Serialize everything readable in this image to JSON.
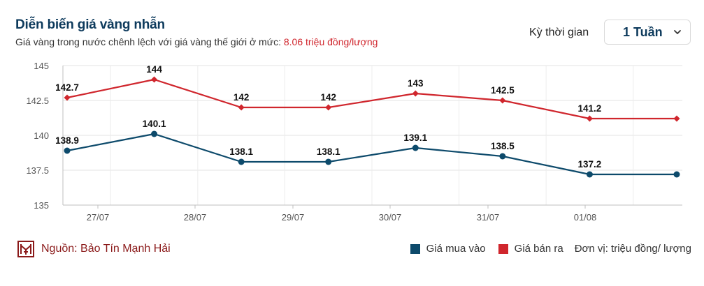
{
  "header": {
    "title": "Diễn biến giá vàng nhẫn",
    "subtitle_prefix": "Giá vàng trong nước chênh lệch với giá vàng thế giới ở mức:",
    "subtitle_highlight": "8.06 triệu đồng/lượng"
  },
  "period": {
    "label": "Kỳ thời gian",
    "selected": "1 Tuần",
    "chevron_icon": "chevron-down-icon"
  },
  "footer": {
    "source_icon": "bao-tin-manh-hai-logo",
    "source_text": "Nguồn: Bảo Tín Mạnh Hải",
    "unit_text": "Đơn vị: triệu đồng/ lượng"
  },
  "legend": {
    "buy_label": "Giá mua vào",
    "sell_label": "Giá bán ra"
  },
  "colors": {
    "buy": "#0d4a6b",
    "sell": "#d0262d",
    "title": "#0d3a5c",
    "highlight": "#d0262d",
    "source": "#8b1a1a"
  },
  "chart_data": {
    "type": "line",
    "title": "Diễn biến giá vàng nhẫn",
    "x_tick_labels": [
      "27/07",
      "28/07",
      "29/07",
      "30/07",
      "31/07",
      "01/08"
    ],
    "y_tick_labels": [
      "135",
      "137.5",
      "140",
      "142.5",
      "145"
    ],
    "ylim": [
      135,
      145
    ],
    "grid": true,
    "legend_position": "bottom-right",
    "series": [
      {
        "name": "Giá bán ra",
        "marker": "diamond",
        "values": [
          142.7,
          144,
          142,
          142,
          143,
          142.5,
          141.2,
          141.2
        ],
        "labels": [
          "142.7",
          "144",
          "142",
          "142",
          "143",
          "142.5",
          "141.2",
          ""
        ]
      },
      {
        "name": "Giá mua vào",
        "marker": "circle",
        "values": [
          138.9,
          140.1,
          138.1,
          138.1,
          139.1,
          138.5,
          137.2,
          137.2
        ],
        "labels": [
          "138.9",
          "140.1",
          "138.1",
          "138.1",
          "139.1",
          "138.5",
          "137.2",
          ""
        ]
      }
    ]
  }
}
